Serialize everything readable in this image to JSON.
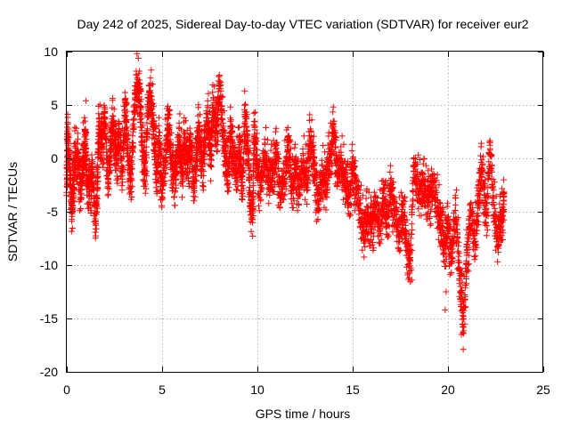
{
  "chart_data": {
    "type": "scatter",
    "title": "Day 242 of 2025, Sidereal Day-to-day VTEC variation (SDTVAR) for receiver eur2",
    "xlabel": "GPS time / hours",
    "ylabel": "SDTVAR / TECUs",
    "xlim": [
      0,
      25
    ],
    "ylim": [
      -20,
      10
    ],
    "xticks": [
      0,
      5,
      10,
      15,
      20,
      25
    ],
    "yticks": [
      -20,
      -15,
      -10,
      -5,
      0,
      5,
      10
    ],
    "grid": true,
    "marker": "plus",
    "color": "#ff0000",
    "legend": "none",
    "series": [
      {
        "name": "SDTVAR",
        "anchors": [
          [
            0.0,
            -3.0
          ],
          [
            0.05,
            2.5
          ],
          [
            0.15,
            -1.0
          ],
          [
            0.25,
            -4.5
          ],
          [
            0.35,
            -2.0
          ],
          [
            0.45,
            1.0
          ],
          [
            0.6,
            -0.5
          ],
          [
            0.75,
            -3.5
          ],
          [
            0.85,
            0.5
          ],
          [
            0.95,
            2.0
          ],
          [
            1.05,
            -1.5
          ],
          [
            1.2,
            -3.0
          ],
          [
            1.35,
            -1.0
          ],
          [
            1.5,
            -5.5
          ],
          [
            1.6,
            -2.0
          ],
          [
            1.7,
            3.5
          ],
          [
            1.85,
            1.0
          ],
          [
            2.0,
            4.0
          ],
          [
            2.15,
            -1.5
          ],
          [
            2.3,
            1.5
          ],
          [
            2.45,
            3.5
          ],
          [
            2.6,
            -0.5
          ],
          [
            2.75,
            2.5
          ],
          [
            2.9,
            -1.0
          ],
          [
            3.05,
            5.0
          ],
          [
            3.2,
            1.0
          ],
          [
            3.35,
            -2.5
          ],
          [
            3.5,
            3.0
          ],
          [
            3.65,
            7.5
          ],
          [
            3.8,
            6.5
          ],
          [
            3.95,
            2.0
          ],
          [
            4.1,
            -2.0
          ],
          [
            4.25,
            4.5
          ],
          [
            4.4,
            6.5
          ],
          [
            4.55,
            3.0
          ],
          [
            4.7,
            -1.5
          ],
          [
            4.85,
            1.5
          ],
          [
            5.0,
            -3.5
          ],
          [
            5.15,
            0.5
          ],
          [
            5.3,
            3.5
          ],
          [
            5.45,
            1.0
          ],
          [
            5.6,
            -2.0
          ],
          [
            5.75,
            -1.0
          ],
          [
            5.9,
            2.5
          ],
          [
            6.05,
            -1.5
          ],
          [
            6.2,
            2.0
          ],
          [
            6.35,
            -0.5
          ],
          [
            6.5,
            1.5
          ],
          [
            6.65,
            -2.0
          ],
          [
            6.8,
            0.5
          ],
          [
            6.95,
            3.0
          ],
          [
            7.1,
            -1.0
          ],
          [
            7.25,
            1.5
          ],
          [
            7.4,
            4.5
          ],
          [
            7.55,
            0.0
          ],
          [
            7.7,
            5.5
          ],
          [
            7.85,
            2.0
          ],
          [
            8.0,
            7.0
          ],
          [
            8.15,
            4.0
          ],
          [
            8.3,
            0.5
          ],
          [
            8.45,
            -1.5
          ],
          [
            8.6,
            2.5
          ],
          [
            8.75,
            0.0
          ],
          [
            8.9,
            -1.0
          ],
          [
            9.05,
            1.5
          ],
          [
            9.2,
            -2.5
          ],
          [
            9.35,
            4.0
          ],
          [
            9.5,
            1.0
          ],
          [
            9.6,
            -3.0
          ],
          [
            9.75,
            -5.0
          ],
          [
            9.85,
            3.5
          ],
          [
            10.0,
            -1.5
          ],
          [
            10.2,
            -2.5
          ],
          [
            10.4,
            1.0
          ],
          [
            10.6,
            -2.0
          ],
          [
            10.8,
            -1.0
          ],
          [
            11.0,
            0.5
          ],
          [
            11.2,
            -3.5
          ],
          [
            11.4,
            -1.5
          ],
          [
            11.6,
            1.5
          ],
          [
            11.8,
            -2.5
          ],
          [
            12.0,
            -1.0
          ],
          [
            12.2,
            -3.0
          ],
          [
            12.4,
            0.0
          ],
          [
            12.6,
            -2.0
          ],
          [
            12.8,
            2.5
          ],
          [
            13.0,
            -1.5
          ],
          [
            13.2,
            -4.5
          ],
          [
            13.4,
            -1.0
          ],
          [
            13.6,
            -2.5
          ],
          [
            13.8,
            0.5
          ],
          [
            14.0,
            2.5
          ],
          [
            14.2,
            -1.5
          ],
          [
            14.4,
            0.0
          ],
          [
            14.6,
            -2.0
          ],
          [
            14.8,
            -3.5
          ],
          [
            15.0,
            -1.0
          ],
          [
            15.2,
            -3.0
          ],
          [
            15.4,
            -4.5
          ],
          [
            15.6,
            -7.0
          ],
          [
            15.8,
            -5.0
          ],
          [
            16.0,
            -6.5
          ],
          [
            16.2,
            -4.5
          ],
          [
            16.4,
            -6.0
          ],
          [
            16.6,
            -3.5
          ],
          [
            16.8,
            -5.5
          ],
          [
            17.0,
            -3.0
          ],
          [
            17.2,
            -5.0
          ],
          [
            17.4,
            -6.5
          ],
          [
            17.6,
            -5.0
          ],
          [
            17.8,
            -7.0
          ],
          [
            18.0,
            -10.5
          ],
          [
            18.2,
            -1.0
          ],
          [
            18.4,
            -2.0
          ],
          [
            18.6,
            -3.0
          ],
          [
            18.8,
            -2.5
          ],
          [
            19.0,
            -4.0
          ],
          [
            19.2,
            -2.5
          ],
          [
            19.4,
            -3.5
          ],
          [
            19.6,
            -6.0
          ],
          [
            19.8,
            -8.0
          ],
          [
            20.0,
            -6.5
          ],
          [
            20.2,
            -9.5
          ],
          [
            20.4,
            -4.0
          ],
          [
            20.6,
            -11.0
          ],
          [
            20.8,
            -15.0
          ],
          [
            21.0,
            -9.0
          ],
          [
            21.2,
            -5.0
          ],
          [
            21.4,
            -7.5
          ],
          [
            21.6,
            -3.5
          ],
          [
            21.8,
            -0.5
          ],
          [
            22.0,
            -6.0
          ],
          [
            22.2,
            1.0
          ],
          [
            22.4,
            -4.0
          ],
          [
            22.6,
            -7.5
          ],
          [
            22.8,
            -5.5
          ],
          [
            22.95,
            -4.0
          ]
        ]
      }
    ]
  }
}
